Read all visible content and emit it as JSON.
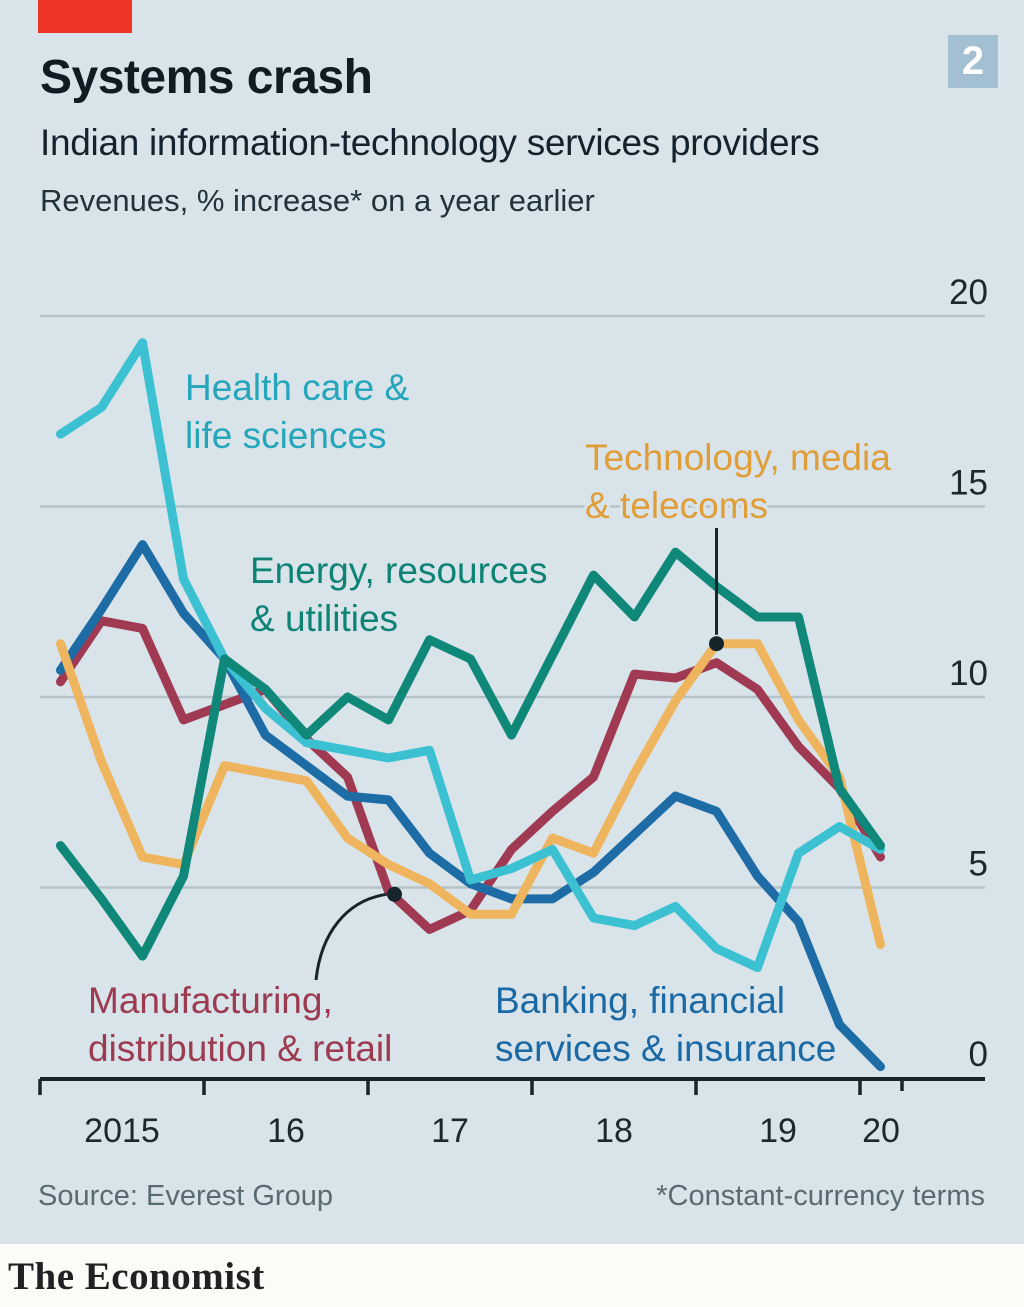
{
  "header": {
    "title": "Systems crash",
    "subtitle": "Indian information-technology services providers",
    "measure": "Revenues, % increase* on a year earlier",
    "figure_number": "2"
  },
  "footer": {
    "source": "Source: Everest Group",
    "footnote": "*Constant-currency terms",
    "brand": "The Economist"
  },
  "colors": {
    "background": "#d8e4ea",
    "red_tab": "#ee3527",
    "figure_box_bg": "#a2c0d2",
    "grid": "#b5c3c9",
    "axis": "#16242c",
    "annotation": "#16242c",
    "heading_text": "#0f1c24",
    "muted_text": "#5a6a73"
  },
  "chart_data": {
    "type": "line",
    "title": "Indian information-technology services providers",
    "ylabel": "Revenues, % increase on a year earlier",
    "ylim": [
      0,
      20
    ],
    "y_ticks": [
      0,
      5,
      10,
      15,
      20
    ],
    "grid": "horizontal",
    "legend_position": "inline-labels",
    "x_axis_ticks": [
      "2015",
      "16",
      "17",
      "18",
      "19",
      "20"
    ],
    "x_labels": [
      "2015 Q1",
      "2015 Q2",
      "2015 Q3",
      "2015 Q4",
      "2016 Q1",
      "2016 Q2",
      "2016 Q3",
      "2016 Q4",
      "2017 Q1",
      "2017 Q2",
      "2017 Q3",
      "2017 Q4",
      "2018 Q1",
      "2018 Q2",
      "2018 Q3",
      "2018 Q4",
      "2019 Q1",
      "2019 Q2",
      "2019 Q3",
      "2019 Q4",
      "2020 Q1"
    ],
    "series": [
      {
        "name": "Health care & life sciences",
        "label_lines": [
          "Health care &",
          "life sciences"
        ],
        "color": "#3cc1d3",
        "label_color": "#26a6bb",
        "values": [
          16.9,
          17.6,
          19.3,
          13.1,
          11.0,
          9.7,
          8.8,
          8.6,
          8.4,
          8.6,
          5.2,
          5.5,
          6.0,
          4.2,
          4.0,
          4.5,
          3.4,
          2.9,
          5.9,
          6.6,
          6.0
        ]
      },
      {
        "name": "Energy, resources & utilities",
        "label_lines": [
          "Energy, resources",
          "& utilities"
        ],
        "color": "#0f8779",
        "label_color": "#0d8376",
        "values": [
          6.1,
          4.7,
          3.2,
          5.3,
          11.0,
          10.2,
          9.0,
          10.0,
          9.4,
          11.5,
          11.0,
          9.0,
          11.1,
          13.2,
          12.1,
          13.8,
          12.9,
          12.1,
          12.1,
          7.6,
          6.1
        ]
      },
      {
        "name": "Technology, media & telecoms",
        "label_lines": [
          "Technology, media",
          "& telecoms"
        ],
        "color": "#efb55e",
        "label_color": "#e09d38",
        "values": [
          11.4,
          8.3,
          5.8,
          5.6,
          8.2,
          8.0,
          7.8,
          6.3,
          5.6,
          5.1,
          4.3,
          4.3,
          6.3,
          5.9,
          8.0,
          9.9,
          11.4,
          11.4,
          9.4,
          7.9,
          3.5
        ]
      },
      {
        "name": "Manufacturing, distribution & retail",
        "label_lines": [
          "Manufacturing,",
          "distribution & retail"
        ],
        "color": "#a03a52",
        "label_color": "#9c3a50",
        "values": [
          10.4,
          12.0,
          11.8,
          9.4,
          9.8,
          10.2,
          8.9,
          7.9,
          4.9,
          3.9,
          4.4,
          6.0,
          7.0,
          7.9,
          10.6,
          10.5,
          10.9,
          10.2,
          8.7,
          7.6,
          5.8
        ]
      },
      {
        "name": "Banking, financial services & insurance",
        "label_lines": [
          "Banking, financial",
          "services & insurance"
        ],
        "color": "#1e6ca5",
        "label_color": "#1a69a4",
        "values": [
          10.7,
          12.3,
          14.0,
          12.2,
          11.0,
          9.0,
          8.2,
          7.4,
          7.3,
          5.9,
          5.1,
          4.7,
          4.7,
          5.4,
          6.4,
          7.4,
          7.0,
          5.3,
          4.1,
          1.4,
          0.3
        ]
      }
    ],
    "annotations": [
      {
        "target": "Technology, media & telecoms",
        "shape": "vertical-line-with-dot",
        "at_x_label": "2019 Q1"
      },
      {
        "target": "Manufacturing, distribution & retail",
        "shape": "curve-with-dot",
        "at_x_label": "2017 Q1"
      }
    ]
  }
}
